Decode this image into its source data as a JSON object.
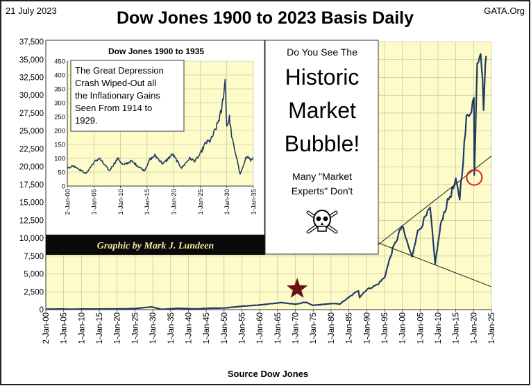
{
  "header": {
    "date": "21 July 2023",
    "title": "Dow Jones 1900 to 2023 Basis Daily",
    "site": "GATA.Org"
  },
  "credit": "Graphic by Mark J. Lundeen",
  "callout": {
    "lead": "Do You See The",
    "big_lines": [
      "Historic",
      "Market",
      "Bubble!"
    ],
    "small_lines": [
      "Many \"Market",
      "Experts\"  Don't"
    ],
    "icon": "skull-and-crossbones-icon"
  },
  "colors": {
    "plot_bg": "#fdfbc8",
    "series": "#1f3a66",
    "marker_star": "#6b1212",
    "marker_circle": "#e02020",
    "credit_bg": "#0a0a0a",
    "credit_text": "#f4e8a0"
  },
  "chart_data": [
    {
      "id": "main",
      "type": "line",
      "title": "Dow Jones 1900 to 2023 Basis Daily",
      "xlabel": "Source Dow Jones",
      "ylabel": "",
      "ylim": [
        0,
        37500
      ],
      "yticks": [
        0,
        2500,
        5000,
        7500,
        10000,
        12500,
        15000,
        17500,
        20000,
        22500,
        25000,
        27500,
        30000,
        32500,
        35000,
        37500
      ],
      "ytick_labels": [
        "0",
        "2,500",
        "5,000",
        "7,500",
        "10,000",
        "12,500",
        "15,000",
        "17,500",
        "20,000",
        "22,500",
        "25,000",
        "27,500",
        "30,000",
        "32,500",
        "35,000",
        "37,500"
      ],
      "xlim": [
        1900,
        2025
      ],
      "xticks": [
        1900,
        1905,
        1910,
        1915,
        1920,
        1925,
        1930,
        1935,
        1940,
        1945,
        1950,
        1955,
        1960,
        1965,
        1970,
        1975,
        1980,
        1985,
        1990,
        1995,
        2000,
        2005,
        2010,
        2015,
        2020,
        2025
      ],
      "xtick_labels": [
        "2-Jan-00",
        "1-Jan-05",
        "1-Jan-10",
        "1-Jan-15",
        "1-Jan-20",
        "1-Jan-25",
        "1-Jan-30",
        "1-Jan-35",
        "1-Jan-40",
        "1-Jan-45",
        "1-Jan-50",
        "1-Jan-55",
        "1-Jan-60",
        "1-Jan-65",
        "1-Jan-70",
        "1-Jan-75",
        "1-Jan-80",
        "1-Jan-85",
        "1-Jan-90",
        "1-Jan-95",
        "1-Jan-00",
        "1-Jan-05",
        "1-Jan-10",
        "1-Jan-15",
        "1-Jan-20",
        "1-Jan-25"
      ],
      "grid": true,
      "series": [
        {
          "x": [
            1900,
            1905,
            1907,
            1910,
            1915,
            1920,
            1925,
            1929.7,
            1932.5,
            1937,
            1942,
            1946,
            1950,
            1955,
            1960,
            1966,
            1970,
            1973,
            1974.9,
            1980,
            1982.5,
            1987.7,
            1988,
            1990,
            1993,
            1995,
            1997,
            1999.9,
            2002.7,
            2004,
            2007.8,
            2009.2,
            2011,
            2013,
            2015,
            2016.1,
            2018,
            2020.1,
            2020.2,
            2021,
            2022,
            2022.8,
            2023.5
          ],
          "y": [
            70,
            90,
            55,
            90,
            90,
            100,
            150,
            380,
            42,
            190,
            95,
            200,
            220,
            480,
            650,
            990,
            750,
            1050,
            580,
            850,
            800,
            2700,
            1750,
            2800,
            3500,
            4500,
            8000,
            11700,
            7300,
            10500,
            14100,
            6500,
            12500,
            15500,
            17800,
            15700,
            26500,
            29500,
            18600,
            35000,
            36800,
            28700,
            35500
          ]
        }
      ],
      "lines": [
        {
          "name": "upper trend",
          "x": [
            1993,
            2025
          ],
          "y": [
            9000,
            21500
          ]
        },
        {
          "name": "lower trend",
          "x": [
            1993,
            2025
          ],
          "y": [
            9400,
            3200
          ]
        }
      ],
      "markers": [
        {
          "shape": "star",
          "x": 1970.5,
          "y": 2900
        },
        {
          "shape": "circle",
          "x": 2020.2,
          "y": 18500
        }
      ]
    },
    {
      "id": "inset",
      "type": "line",
      "title": "Dow Jones 1900 to 1935",
      "xlabel": "",
      "ylabel": "",
      "ylim": [
        0,
        450
      ],
      "yticks": [
        0,
        50,
        100,
        150,
        200,
        250,
        300,
        350,
        400,
        450
      ],
      "ytick_labels": [
        "0",
        "50",
        "100",
        "150",
        "200",
        "250",
        "300",
        "350",
        "400",
        "450"
      ],
      "xlim": [
        1900,
        1935
      ],
      "xticks": [
        1900,
        1905,
        1910,
        1915,
        1920,
        1925,
        1930,
        1935
      ],
      "xtick_labels": [
        "2-Jan-00",
        "1-Jan-05",
        "1-Jan-10",
        "1-Jan-15",
        "1-Jan-20",
        "1-Jan-25",
        "1-Jan-30",
        "1-Jan-35"
      ],
      "grid": true,
      "annotation": [
        "The Great Depression",
        "Crash Wiped-Out all",
        "the Inflationary Gains",
        "Seen From 1914 to",
        "1929."
      ],
      "series": [
        {
          "x": [
            1900,
            1901,
            1901.5,
            1903.5,
            1905,
            1906,
            1907.9,
            1909.5,
            1910.5,
            1912,
            1914.5,
            1915.5,
            1916.5,
            1918,
            1919.8,
            1921.5,
            1923,
            1924,
            1925,
            1926,
            1927,
            1928,
            1929,
            1929.7,
            1930,
            1930.5,
            1931,
            1932,
            1932.5,
            1933,
            1933.5,
            1934,
            1934.5,
            1935
          ],
          "y": [
            65,
            72,
            70,
            45,
            85,
            100,
            55,
            100,
            75,
            90,
            55,
            95,
            110,
            80,
            115,
            65,
            100,
            90,
            115,
            155,
            165,
            210,
            270,
            380,
            215,
            245,
            170,
            90,
            42,
            65,
            100,
            105,
            92,
            105
          ]
        }
      ]
    }
  ]
}
